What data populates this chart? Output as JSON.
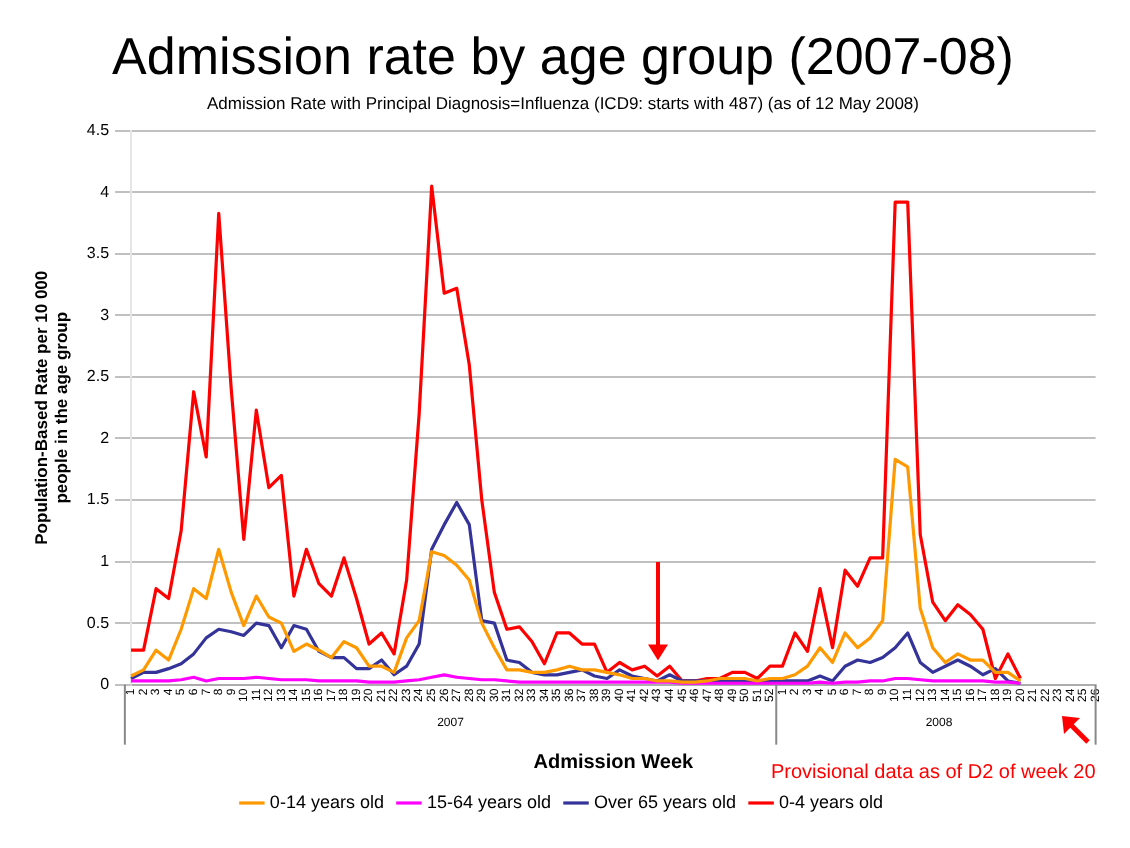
{
  "chart_data": {
    "type": "line",
    "title": "Admission rate by age group (2007-08)",
    "subtitle": "Admission Rate with Principal Diagnosis=Influenza (ICD9: starts with 487) (as of 12 May 2008)",
    "xlabel": "Admission Week",
    "ylabel": "Population-Based Rate per 10 000 people in the age group",
    "categories": [
      "1",
      "2",
      "3",
      "4",
      "5",
      "6",
      "7",
      "8",
      "9",
      "10",
      "11",
      "12",
      "13",
      "14",
      "15",
      "16",
      "17",
      "18",
      "19",
      "20",
      "21",
      "22",
      "23",
      "24",
      "25",
      "26",
      "27",
      "28",
      "29",
      "30",
      "31",
      "32",
      "33",
      "34",
      "35",
      "36",
      "37",
      "38",
      "39",
      "40",
      "41",
      "42",
      "43",
      "44",
      "45",
      "46",
      "47",
      "48",
      "49",
      "50",
      "51",
      "52",
      "1",
      "2",
      "3",
      "4",
      "5",
      "6",
      "7",
      "8",
      "9",
      "10",
      "11",
      "12",
      "13",
      "14",
      "15",
      "16",
      "17",
      "18",
      "19",
      "20",
      "21",
      "22",
      "23",
      "24",
      "25",
      "26"
    ],
    "series": [
      {
        "name": "0-14 years old",
        "color": "#ff9900",
        "values": [
          0.07,
          0.12,
          0.28,
          0.2,
          0.45,
          0.78,
          0.7,
          1.1,
          0.75,
          0.48,
          0.72,
          0.55,
          0.5,
          0.27,
          0.33,
          0.28,
          0.22,
          0.35,
          0.3,
          0.15,
          0.15,
          0.1,
          0.38,
          0.52,
          1.08,
          1.05,
          0.97,
          0.85,
          0.5,
          0.3,
          0.12,
          0.12,
          0.1,
          0.1,
          0.12,
          0.15,
          0.12,
          0.12,
          0.1,
          0.08,
          0.05,
          0.05,
          0.03,
          0.03,
          0.02,
          0.02,
          0.03,
          0.05,
          0.05,
          0.05,
          0.03,
          0.05,
          0.05,
          0.08,
          0.15,
          0.3,
          0.18,
          0.42,
          0.3,
          0.38,
          0.52,
          1.83,
          1.77,
          0.62,
          0.3,
          0.18,
          0.25,
          0.2,
          0.2,
          0.1,
          0.1,
          0.03,
          null,
          null,
          null,
          null,
          null,
          null
        ]
      },
      {
        "name": "15-64 years old",
        "color": "#ff00ff",
        "values": [
          0.03,
          0.03,
          0.03,
          0.03,
          0.04,
          0.06,
          0.03,
          0.05,
          0.05,
          0.05,
          0.06,
          0.05,
          0.04,
          0.04,
          0.04,
          0.03,
          0.03,
          0.03,
          0.03,
          0.02,
          0.02,
          0.02,
          0.03,
          0.04,
          0.06,
          0.08,
          0.06,
          0.05,
          0.04,
          0.04,
          0.03,
          0.02,
          0.02,
          0.02,
          0.02,
          0.02,
          0.02,
          0.02,
          0.02,
          0.02,
          0.02,
          0.02,
          0.02,
          0.02,
          0.01,
          0.01,
          0.01,
          0.01,
          0.01,
          0.01,
          0.01,
          0.01,
          0.01,
          0.01,
          0.01,
          0.02,
          0.01,
          0.02,
          0.02,
          0.03,
          0.03,
          0.05,
          0.05,
          0.04,
          0.03,
          0.03,
          0.03,
          0.03,
          0.03,
          0.02,
          0.02,
          0.01,
          null,
          null,
          null,
          null,
          null,
          null
        ]
      },
      {
        "name": "Over 65 years old",
        "color": "#333399",
        "values": [
          0.05,
          0.1,
          0.1,
          0.13,
          0.17,
          0.25,
          0.38,
          0.45,
          0.43,
          0.4,
          0.5,
          0.48,
          0.3,
          0.48,
          0.45,
          0.27,
          0.22,
          0.22,
          0.13,
          0.13,
          0.2,
          0.08,
          0.15,
          0.33,
          1.1,
          1.3,
          1.48,
          1.3,
          0.52,
          0.5,
          0.2,
          0.18,
          0.1,
          0.08,
          0.08,
          0.1,
          0.12,
          0.07,
          0.05,
          0.12,
          0.07,
          0.05,
          0.03,
          0.08,
          0.03,
          0.03,
          0.03,
          0.03,
          0.03,
          0.03,
          0.03,
          0.03,
          0.03,
          0.03,
          0.03,
          0.07,
          0.03,
          0.15,
          0.2,
          0.18,
          0.22,
          0.3,
          0.42,
          0.18,
          0.1,
          0.15,
          0.2,
          0.15,
          0.08,
          0.13,
          0.03,
          0.01,
          null,
          null,
          null,
          null,
          null,
          null
        ]
      },
      {
        "name": "0-4 years old",
        "color": "#ff0000",
        "values": [
          0.28,
          0.28,
          0.78,
          0.7,
          1.25,
          2.38,
          1.85,
          3.83,
          2.4,
          1.18,
          2.23,
          1.6,
          1.7,
          0.72,
          1.1,
          0.82,
          0.72,
          1.03,
          0.7,
          0.33,
          0.42,
          0.25,
          0.85,
          2.2,
          4.05,
          3.18,
          3.22,
          2.6,
          1.5,
          0.75,
          0.45,
          0.47,
          0.35,
          0.17,
          0.42,
          0.42,
          0.33,
          0.33,
          0.1,
          0.18,
          0.12,
          0.15,
          0.07,
          0.15,
          0.03,
          0.03,
          0.05,
          0.05,
          0.1,
          0.1,
          0.05,
          0.15,
          0.15,
          0.42,
          0.27,
          0.78,
          0.3,
          0.93,
          0.8,
          1.03,
          1.03,
          3.92,
          3.92,
          1.22,
          0.67,
          0.52,
          0.65,
          0.57,
          0.45,
          0.05,
          0.25,
          0.05,
          null,
          null,
          null,
          null,
          null,
          null
        ]
      }
    ],
    "ylim": [
      0,
      4.5
    ],
    "yticks": [
      0,
      0.5,
      1,
      1.5,
      2,
      2.5,
      3,
      3.5,
      4,
      4.5
    ],
    "grid": "y",
    "legend": "bottom",
    "marker": "none",
    "line_style": "solid",
    "annotations": [
      "2007",
      "2008",
      "Provisional data as of D2 of week 20"
    ]
  }
}
